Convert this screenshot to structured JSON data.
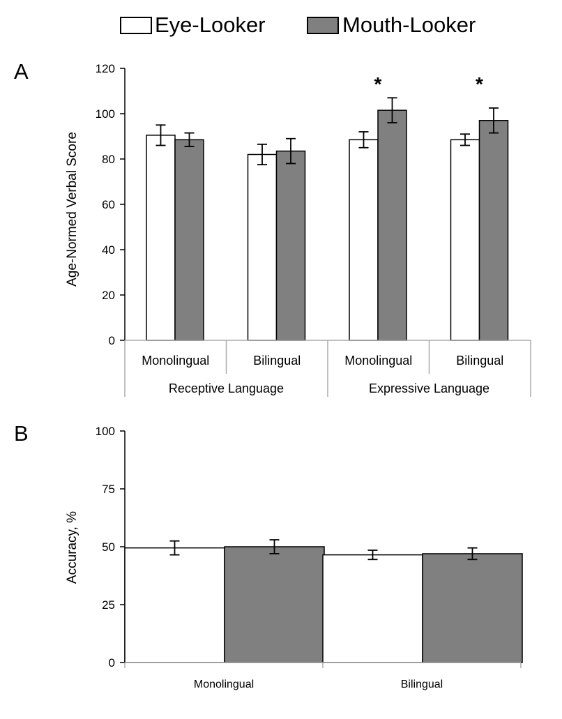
{
  "legend": {
    "placement": "top",
    "items": [
      {
        "label": "Eye-Looker",
        "color": "#ffffff"
      },
      {
        "label": "Mouth-Looker",
        "color": "#808080"
      }
    ]
  },
  "colors": {
    "eye": "#ffffff",
    "mouth": "#808080",
    "stroke": "#000000"
  },
  "chart_data": [
    {
      "type": "bar",
      "panel_label": "A",
      "ylabel": "Age-Normed Verbal Score",
      "ylim": [
        0,
        120
      ],
      "yticks": [
        0,
        20,
        40,
        60,
        80,
        100,
        120
      ],
      "categories": [
        "Monolingual",
        "Bilingual",
        "Monolingual",
        "Bilingual"
      ],
      "groups": [
        {
          "label": "Receptive Language",
          "span": [
            0,
            1
          ]
        },
        {
          "label": "Expressive Language",
          "span": [
            2,
            3
          ]
        }
      ],
      "series": [
        {
          "name": "Eye-Looker",
          "values": [
            90.5,
            82,
            88.5,
            88.5
          ],
          "errors": [
            4.5,
            4.5,
            3.5,
            2.5
          ]
        },
        {
          "name": "Mouth-Looker",
          "values": [
            88.5,
            83.5,
            101.5,
            97
          ],
          "errors": [
            3,
            5.5,
            5.5,
            5.5
          ]
        }
      ],
      "annotations": [
        {
          "text": "*",
          "category_index": 2
        },
        {
          "text": "*",
          "category_index": 3
        }
      ],
      "grid": false
    },
    {
      "type": "bar",
      "panel_label": "B",
      "ylabel": "Accuracy, %",
      "ylim": [
        0,
        100
      ],
      "yticks": [
        0,
        25,
        50,
        75,
        100
      ],
      "categories": [
        "Monolingual",
        "Bilingual"
      ],
      "series": [
        {
          "name": "Eye-Looker",
          "values": [
            49.5,
            46.5
          ],
          "errors": [
            3,
            2
          ]
        },
        {
          "name": "Mouth-Looker",
          "values": [
            50,
            47
          ],
          "errors": [
            3,
            2.5
          ]
        }
      ],
      "grid": false
    }
  ]
}
